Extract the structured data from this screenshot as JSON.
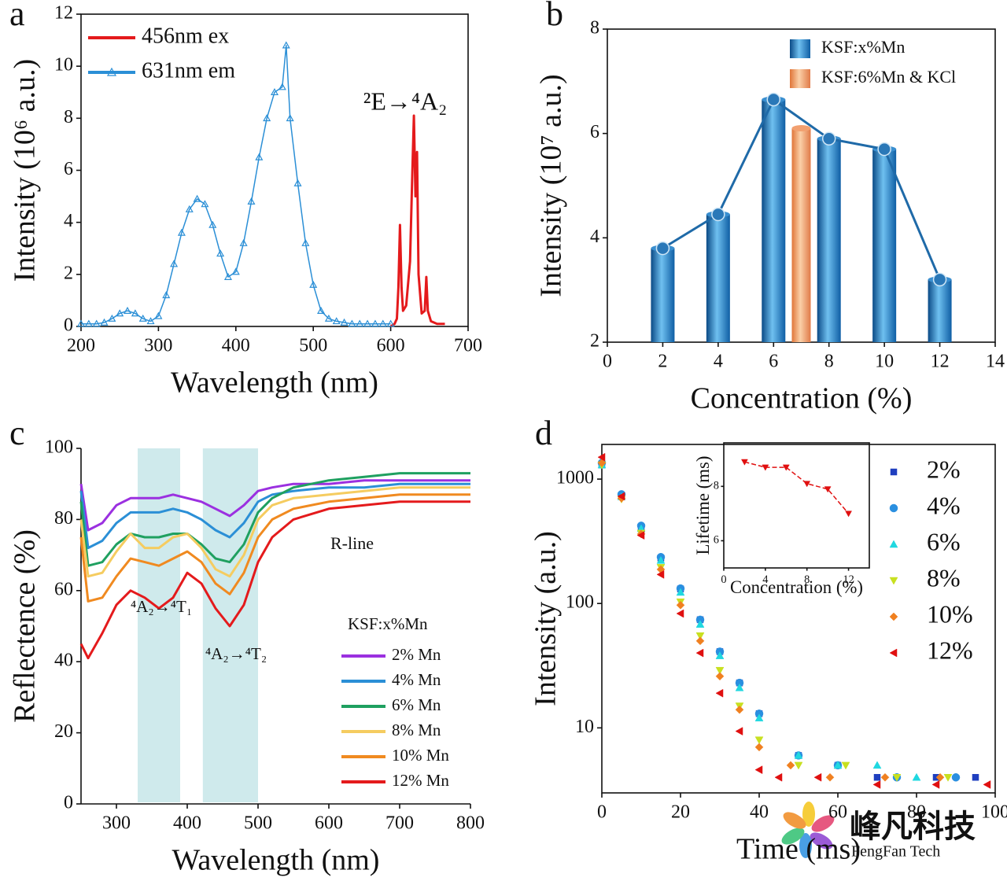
{
  "chart_data": [
    {
      "type": "line",
      "panel_label": "a",
      "x_label": "Wavelength (nm)",
      "y_label": "Intensity (10⁶ a.u.)",
      "xlim": [
        200,
        700
      ],
      "xticks": [
        200,
        300,
        400,
        500,
        600,
        700
      ],
      "ylim": [
        0,
        12
      ],
      "yticks": [
        0,
        2,
        4,
        6,
        8,
        10,
        12
      ],
      "frame": true,
      "legend": "upper left",
      "annotations": [
        "²E→⁴A₂"
      ],
      "series": [
        {
          "name": "456nm ex",
          "color": "#e41a1c",
          "x": [
            600,
            605,
            608,
            610,
            612,
            614,
            616,
            620,
            625,
            628,
            630,
            632,
            634,
            636,
            640,
            644,
            646,
            648,
            652,
            660,
            670
          ],
          "values": [
            0,
            0.1,
            0.3,
            1.5,
            3.9,
            1.5,
            0.6,
            0.8,
            2.5,
            6.0,
            8.1,
            5.0,
            6.7,
            2.0,
            0.5,
            0.6,
            1.9,
            0.6,
            0.2,
            0.1,
            0.1
          ]
        },
        {
          "name": "631nm em",
          "color": "#2b8fd6",
          "marker": "triangle-up",
          "x": [
            200,
            210,
            220,
            230,
            240,
            250,
            260,
            270,
            280,
            290,
            300,
            310,
            320,
            330,
            340,
            350,
            360,
            370,
            380,
            390,
            400,
            410,
            420,
            430,
            440,
            450,
            460,
            465,
            470,
            480,
            490,
            500,
            510,
            520,
            530,
            540,
            550,
            560,
            570,
            580,
            590,
            600
          ],
          "values": [
            0.1,
            0.1,
            0.1,
            0.15,
            0.3,
            0.5,
            0.6,
            0.5,
            0.3,
            0.2,
            0.4,
            1.2,
            2.4,
            3.6,
            4.5,
            4.9,
            4.7,
            3.9,
            2.8,
            1.9,
            2.1,
            3.2,
            4.8,
            6.5,
            8.0,
            9.0,
            9.2,
            10.8,
            8.0,
            5.5,
            3.2,
            1.6,
            0.6,
            0.3,
            0.2,
            0.15,
            0.1,
            0.1,
            0.1,
            0.1,
            0.1,
            0.1
          ]
        }
      ]
    },
    {
      "type": "bar",
      "panel_label": "b",
      "x_label": "Concentration (%)",
      "y_label": "Intensity (10⁷ a.u.)",
      "xlim": [
        0,
        14
      ],
      "xticks": [
        0,
        2,
        4,
        6,
        8,
        10,
        12,
        14
      ],
      "ylim": [
        2,
        8
      ],
      "yticks": [
        2,
        4,
        6,
        8
      ],
      "frame": true,
      "legend": "upper right",
      "series": [
        {
          "name": "KSF:x%Mn",
          "color": "#2a7fc6",
          "line": true,
          "x": [
            2,
            4,
            6,
            8,
            10,
            12
          ],
          "values": [
            3.8,
            4.45,
            6.65,
            5.9,
            5.7,
            3.2
          ]
        },
        {
          "name": "KSF:6%Mn & KCl",
          "color": "#f0905a",
          "x": [
            7
          ],
          "values": [
            6.1
          ]
        }
      ]
    },
    {
      "type": "line",
      "panel_label": "c",
      "x_label": "Wavelength (nm)",
      "y_label": "Reflectence (%)",
      "xlim": [
        250,
        800
      ],
      "xticks": [
        300,
        400,
        500,
        600,
        700,
        800
      ],
      "ylim": [
        0,
        100
      ],
      "yticks": [
        0,
        20,
        40,
        60,
        80,
        100
      ],
      "frame": false,
      "legend": "lower right",
      "legend_title": "KSF:x%Mn",
      "shaded_regions": [
        [
          330,
          390
        ],
        [
          422,
          500
        ]
      ],
      "annotations": [
        "R-line",
        "⁴A₂→⁴T₁",
        "⁴A₂→⁴T₂"
      ],
      "series": [
        {
          "name": "2% Mn",
          "color": "#9b30e0",
          "x": [
            250,
            260,
            280,
            300,
            320,
            340,
            360,
            380,
            400,
            420,
            440,
            460,
            480,
            500,
            520,
            550,
            600,
            650,
            700,
            750,
            800
          ],
          "values": [
            90,
            77,
            79,
            84,
            86,
            86,
            86,
            87,
            86,
            85,
            83,
            81,
            84,
            88,
            89,
            90,
            90,
            91,
            91,
            91,
            91
          ]
        },
        {
          "name": "4% Mn",
          "color": "#2b8fd6",
          "x": [
            250,
            260,
            280,
            300,
            320,
            340,
            360,
            380,
            400,
            420,
            440,
            460,
            480,
            500,
            520,
            550,
            600,
            650,
            700,
            750,
            800
          ],
          "values": [
            88,
            72,
            74,
            79,
            82,
            82,
            82,
            83,
            82,
            80,
            77,
            75,
            79,
            85,
            87,
            88,
            89,
            89,
            90,
            90,
            90
          ]
        },
        {
          "name": "6% Mn",
          "color": "#1fa060",
          "x": [
            250,
            260,
            280,
            300,
            320,
            340,
            360,
            380,
            400,
            420,
            440,
            460,
            480,
            500,
            520,
            550,
            600,
            650,
            700,
            750,
            800
          ],
          "values": [
            85,
            67,
            68,
            73,
            76,
            75,
            75,
            76,
            76,
            73,
            69,
            68,
            73,
            82,
            86,
            89,
            91,
            92,
            93,
            93,
            93
          ]
        },
        {
          "name": "8% Mn",
          "color": "#f5cc60",
          "x": [
            250,
            260,
            280,
            300,
            320,
            340,
            360,
            380,
            400,
            420,
            440,
            460,
            480,
            500,
            520,
            550,
            600,
            650,
            700,
            750,
            800
          ],
          "values": [
            80,
            64,
            65,
            71,
            76,
            72,
            72,
            75,
            76,
            72,
            66,
            64,
            70,
            80,
            84,
            86,
            87,
            88,
            89,
            89,
            89
          ]
        },
        {
          "name": "10% Mn",
          "color": "#f08a20",
          "x": [
            250,
            260,
            280,
            300,
            320,
            340,
            360,
            380,
            400,
            420,
            440,
            460,
            480,
            500,
            520,
            550,
            600,
            650,
            700,
            750,
            800
          ],
          "values": [
            75,
            57,
            58,
            64,
            69,
            68,
            67,
            69,
            71,
            68,
            62,
            59,
            65,
            75,
            80,
            83,
            85,
            86,
            87,
            87,
            87
          ]
        },
        {
          "name": "12% Mn",
          "color": "#e41a1c",
          "x": [
            250,
            260,
            280,
            300,
            320,
            340,
            360,
            380,
            400,
            420,
            440,
            460,
            480,
            500,
            520,
            550,
            600,
            650,
            700,
            750,
            800
          ],
          "values": [
            45,
            41,
            48,
            56,
            60,
            58,
            55,
            58,
            65,
            62,
            55,
            50,
            56,
            68,
            75,
            80,
            83,
            84,
            85,
            85,
            85
          ]
        }
      ]
    },
    {
      "type": "scatter",
      "panel_label": "d",
      "x_label": "Time (ms)",
      "y_label": "Intensity (a.u.)",
      "xlim": [
        0,
        100
      ],
      "xticks": [
        0,
        20,
        40,
        60,
        80,
        100
      ],
      "ylim": [
        3,
        1900
      ],
      "yticks": [
        10,
        100,
        1000
      ],
      "log_y": true,
      "frame": true,
      "legend": "right",
      "series": [
        {
          "name": "2%",
          "color": "#1f3fbf",
          "marker": "square",
          "x": [
            0,
            5,
            10,
            15,
            20,
            25,
            30,
            35,
            40,
            50,
            60,
            70,
            85,
            95
          ],
          "values": [
            1300,
            732,
            412,
            232,
            131,
            74,
            41,
            23,
            13,
            6,
            5,
            4,
            4,
            4
          ]
        },
        {
          "name": "4%",
          "color": "#2a8fe0",
          "marker": "circle",
          "x": [
            0,
            5,
            10,
            15,
            20,
            25,
            30,
            35,
            40,
            50,
            60,
            75,
            90
          ],
          "values": [
            1350,
            755,
            422,
            236,
            132,
            74,
            41,
            23,
            13,
            6,
            5,
            4,
            4
          ]
        },
        {
          "name": "6%",
          "color": "#20d8e0",
          "marker": "triangle-up",
          "x": [
            0,
            5,
            10,
            15,
            20,
            25,
            30,
            35,
            40,
            50,
            60,
            70,
            80
          ],
          "values": [
            1300,
            722,
            400,
            222,
            123,
            68,
            38,
            21,
            12,
            6,
            5,
            5,
            4
          ]
        },
        {
          "name": "8%",
          "color": "#c8e020",
          "marker": "triangle-down",
          "x": [
            0,
            5,
            10,
            15,
            20,
            25,
            30,
            35,
            40,
            50,
            62,
            75,
            88
          ],
          "values": [
            1300,
            690,
            367,
            195,
            103,
            55,
            29,
            15,
            8,
            5,
            5,
            4,
            4
          ]
        },
        {
          "name": "10%",
          "color": "#f08020",
          "marker": "diamond",
          "x": [
            0,
            5,
            10,
            15,
            20,
            25,
            30,
            35,
            40,
            48,
            58,
            72,
            86
          ],
          "values": [
            1350,
            700,
            362,
            188,
            97,
            50,
            26,
            14,
            7,
            5,
            4,
            4,
            4
          ]
        },
        {
          "name": "12%",
          "color": "#e01010",
          "marker": "triangle-left",
          "x": [
            0,
            5,
            10,
            15,
            20,
            25,
            30,
            35,
            40,
            45,
            55,
            70,
            85,
            98
          ],
          "values": [
            1500,
            727,
            353,
            171,
            83,
            40,
            19,
            9.4,
            4.6,
            4,
            4,
            3.5,
            3.5,
            3.5
          ]
        }
      ]
    },
    {
      "type": "scatter",
      "x_label": "Concentration (%)",
      "y_label": "Lifetime (ms)",
      "xlim": [
        0,
        14
      ],
      "xticks": [
        0,
        4,
        8,
        12
      ],
      "ylim": [
        5,
        9.6
      ],
      "yticks": [
        6,
        8
      ],
      "frame": true,
      "series": [
        {
          "color": "#e01010",
          "marker": "triangle-down",
          "line": "dashed",
          "x": [
            2,
            4,
            6,
            8,
            10,
            12
          ],
          "values": [
            8.9,
            8.7,
            8.7,
            8.1,
            7.9,
            7.0
          ]
        }
      ]
    }
  ],
  "watermark": {
    "text": "峰凡科技",
    "subtext": "FengFan Tech"
  }
}
